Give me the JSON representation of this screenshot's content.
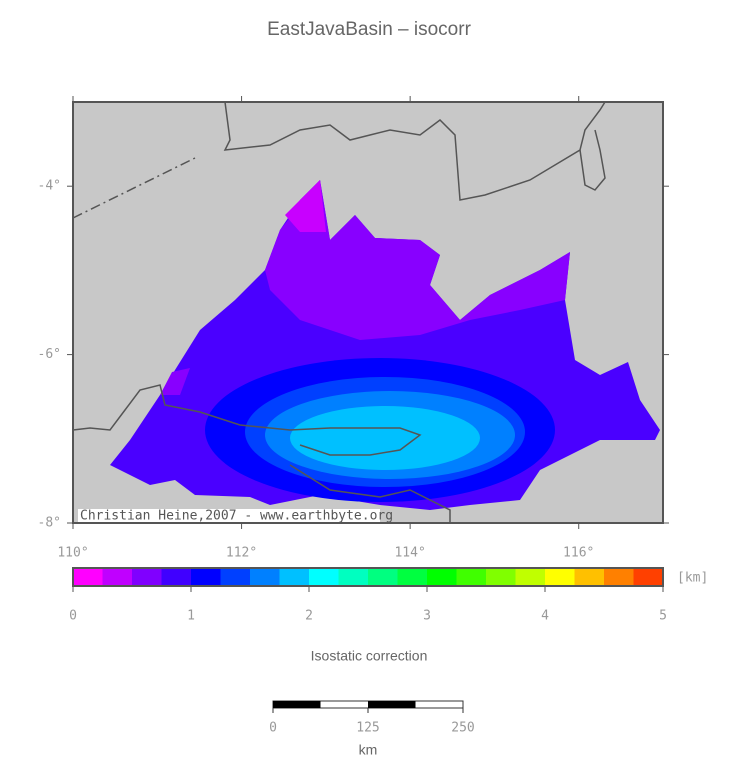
{
  "title": "EastJavaBasin – isocorr",
  "map": {
    "xlim": [
      110,
      117
    ],
    "ylim": [
      -8,
      -3
    ],
    "xticks": [
      {
        "value": 110,
        "label": "110°"
      },
      {
        "value": 112,
        "label": "112°"
      },
      {
        "value": 114,
        "label": "114°"
      },
      {
        "value": 116,
        "label": "116°"
      }
    ],
    "yticks": [
      {
        "value": -4,
        "label": "-4°"
      },
      {
        "value": -6,
        "label": "-6°"
      },
      {
        "value": -8,
        "label": "-8°"
      }
    ],
    "credit": "Christian Heine,2007 - www.earthbyte.org"
  },
  "colorbar": {
    "range": [
      0,
      5
    ],
    "ticks": [
      0,
      1,
      2,
      3,
      4,
      5
    ],
    "unit": "[km]",
    "label": "Isostatic correction",
    "colors": [
      "#ff00ff",
      "#c000ff",
      "#8000ff",
      "#4000ff",
      "#0000ff",
      "#0040ff",
      "#0080ff",
      "#00c0ff",
      "#00ffff",
      "#00ffc0",
      "#00ff80",
      "#00ff40",
      "#00ff00",
      "#40ff00",
      "#80ff00",
      "#c0ff00",
      "#ffff00",
      "#ffc000",
      "#ff8000",
      "#ff4000"
    ]
  },
  "scalebar": {
    "ticks": [
      0,
      125,
      250
    ],
    "unit": "km"
  }
}
